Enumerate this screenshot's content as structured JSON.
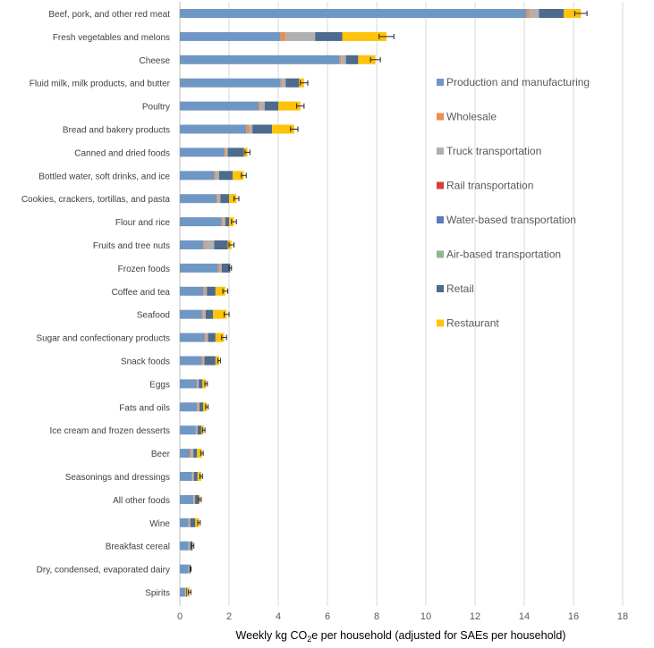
{
  "chart_data": {
    "type": "bar",
    "orientation": "horizontal",
    "stacked": true,
    "title": "",
    "xlabel_prefix": "Weekly kg CO",
    "xlabel_sub": "2",
    "xlabel_suffix": "e per household (adjusted for SAEs per household)",
    "xlim": [
      0,
      18
    ],
    "xticks": [
      "0",
      "2",
      "4",
      "6",
      "8",
      "10",
      "12",
      "14",
      "16",
      "18"
    ],
    "grid": "vertical",
    "legend_position": "right",
    "categories": [
      "Beef, pork, and other red meat",
      "Fresh vegetables and melons",
      "Cheese",
      "Fluid milk, milk products, and butter",
      "Poultry",
      "Bread and bakery products",
      "Canned and dried foods",
      "Bottled water, soft drinks, and ice",
      "Cookies, crackers, tortillas, and pasta",
      "Flour and rice",
      "Fruits and tree nuts",
      "Frozen foods",
      "Coffee and tea",
      "Seafood",
      "Sugar and confectionary products",
      "Snack foods",
      "Eggs",
      "Fats and oils",
      "Ice cream and frozen desserts",
      "Beer",
      "Seasonings and dressings",
      "All other foods",
      "Wine",
      "Breakfast cereal",
      "Dry, condensed, evaporated dairy",
      "Spirits"
    ],
    "series": [
      {
        "name": "Production and manufacturing",
        "color": "#6f97c4",
        "values": [
          14.1,
          4.1,
          6.5,
          4.1,
          3.2,
          2.7,
          1.8,
          1.4,
          1.5,
          1.7,
          0.95,
          1.55,
          0.95,
          0.9,
          1.0,
          0.9,
          0.7,
          0.7,
          0.65,
          0.4,
          0.5,
          0.55,
          0.35,
          0.35,
          0.35,
          0.2
        ]
      },
      {
        "name": "Wholesale",
        "color": "#ed8d4f",
        "values": [
          0.1,
          0.2,
          0.05,
          0.05,
          0.05,
          0.1,
          0.05,
          0.05,
          0.05,
          0.05,
          0.05,
          0.05,
          0.05,
          0.05,
          0.05,
          0.05,
          0.02,
          0.05,
          0.02,
          0.05,
          0.02,
          0.02,
          0.03,
          0.02,
          0.02,
          0.03
        ]
      },
      {
        "name": "Truck transportation",
        "color": "#b0b0b0",
        "values": [
          0.4,
          1.2,
          0.2,
          0.15,
          0.2,
          0.15,
          0.1,
          0.15,
          0.1,
          0.1,
          0.4,
          0.1,
          0.1,
          0.1,
          0.1,
          0.05,
          0.05,
          0.05,
          0.05,
          0.1,
          0.05,
          0.05,
          0.05,
          0.05,
          0.02,
          0.02
        ]
      },
      {
        "name": "Rail transportation",
        "color": "#d43f3a",
        "values": [
          0,
          0,
          0,
          0,
          0,
          0,
          0,
          0,
          0,
          0,
          0,
          0,
          0,
          0,
          0,
          0,
          0,
          0,
          0,
          0,
          0,
          0,
          0,
          0,
          0,
          0
        ]
      },
      {
        "name": "Water-based transportation",
        "color": "#5b7bb8",
        "values": [
          0,
          0,
          0,
          0,
          0,
          0,
          0,
          0,
          0,
          0,
          0,
          0,
          0,
          0,
          0,
          0,
          0,
          0,
          0,
          0,
          0,
          0,
          0,
          0,
          0,
          0
        ]
      },
      {
        "name": "Air-based transportation",
        "color": "#8fb98b",
        "values": [
          0,
          0,
          0,
          0,
          0,
          0,
          0,
          0,
          0,
          0,
          0,
          0,
          0,
          0,
          0,
          0,
          0,
          0,
          0,
          0,
          0,
          0,
          0,
          0,
          0,
          0
        ]
      },
      {
        "name": "Retail",
        "color": "#4e6a8c",
        "values": [
          1.0,
          1.1,
          0.5,
          0.55,
          0.55,
          0.8,
          0.65,
          0.55,
          0.35,
          0.15,
          0.55,
          0.35,
          0.35,
          0.3,
          0.3,
          0.45,
          0.15,
          0.15,
          0.15,
          0.15,
          0.15,
          0.15,
          0.2,
          0.1,
          0.05,
          0.05
        ]
      },
      {
        "name": "Restaurant",
        "color": "#fec30a",
        "values": [
          0.7,
          1.8,
          0.7,
          0.2,
          0.9,
          0.9,
          0.15,
          0.45,
          0.3,
          0.2,
          0.15,
          0.0,
          0.4,
          0.55,
          0.35,
          0.15,
          0.15,
          0.15,
          0.1,
          0.2,
          0.15,
          0.05,
          0.15,
          0.0,
          0.0,
          0.1
        ]
      }
    ],
    "error_bars": [
      0.25,
      0.3,
      0.2,
      0.15,
      0.15,
      0.15,
      0.1,
      0.1,
      0.1,
      0.1,
      0.1,
      0.05,
      0.1,
      0.1,
      0.1,
      0.05,
      0.05,
      0.05,
      0.05,
      0.05,
      0.05,
      0.05,
      0.05,
      0.05,
      0.02,
      0.05
    ]
  }
}
